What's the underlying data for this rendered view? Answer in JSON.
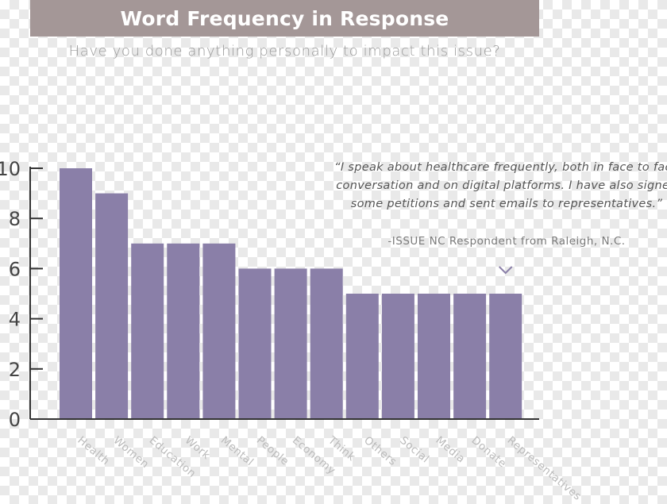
{
  "chart_data": {
    "type": "bar",
    "title": "Word Frequency in Response",
    "subtitle": "Have you done anything personally to impact this issue?",
    "categories": [
      "Health",
      "Women",
      "Education",
      "Work",
      "Mental",
      "People",
      "Economy",
      "Think",
      "Others",
      "Social",
      "Media",
      "Donate",
      "Representatives"
    ],
    "values": [
      10,
      9,
      7,
      7,
      7,
      6,
      6,
      6,
      5,
      5,
      5,
      5,
      5
    ],
    "ylim": [
      0,
      10
    ],
    "yticks": [
      0,
      2,
      4,
      6,
      8,
      10
    ],
    "ytick_labels": [
      "0",
      "2",
      "4",
      "6",
      "8",
      "10"
    ],
    "xlabel": "",
    "ylabel": "",
    "grid": false,
    "bar_color": "#8a7fa8",
    "axis_color": "#333333",
    "annotation": {
      "quote": "“I speak about healthcare frequently, both in face to face conversation and on digital platforms. I have also signed some petitions and sent emails to representatives.”",
      "attribution": "-ISSUE NC Respondent from Raleigh, N.C.",
      "marker_icon": "chevron-down-icon",
      "points_to": "Representatives"
    }
  }
}
